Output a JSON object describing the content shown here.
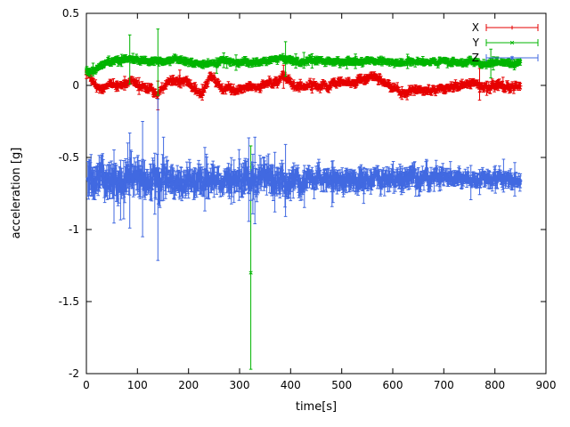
{
  "figure": {
    "background": "#ffffff",
    "border_color": "#000000"
  },
  "chart_data": {
    "type": "scatter",
    "style": "points-with-error-bars",
    "title": "",
    "xlabel": "time[s]",
    "ylabel": "acceleration [g]",
    "xlim": [
      0,
      900
    ],
    "ylim": [
      -2,
      0.5
    ],
    "xticks": [
      0,
      100,
      200,
      300,
      400,
      500,
      600,
      700,
      800,
      900
    ],
    "yticks": [
      0.5,
      0,
      -0.5,
      -1,
      -1.5,
      -2
    ],
    "ytick_labels": [
      "0.5",
      "0",
      "-0.5",
      "-1",
      "-1.5",
      "-2"
    ],
    "grid": false,
    "legend_position": "top-right-inside",
    "series": [
      {
        "name": "X",
        "color": "#e60000",
        "marker": "plus",
        "step": 1,
        "noise_sd": 0.011,
        "err_half_typ": 0.022,
        "err_half_max": 0.09,
        "anchors": [
          [
            0,
            0.08
          ],
          [
            8,
            0.05
          ],
          [
            15,
            0.02
          ],
          [
            22,
            -0.02
          ],
          [
            30,
            -0.03
          ],
          [
            40,
            0.0
          ],
          [
            52,
            0.01
          ],
          [
            62,
            -0.01
          ],
          [
            72,
            0.01
          ],
          [
            82,
            0.03
          ],
          [
            92,
            0.03
          ],
          [
            102,
            0.01
          ],
          [
            112,
            -0.01
          ],
          [
            122,
            -0.01
          ],
          [
            132,
            -0.04
          ],
          [
            140,
            -0.07
          ],
          [
            148,
            -0.02
          ],
          [
            158,
            0.01
          ],
          [
            168,
            0.02
          ],
          [
            178,
            0.03
          ],
          [
            188,
            0.03
          ],
          [
            198,
            0.02
          ],
          [
            208,
            -0.01
          ],
          [
            218,
            -0.04
          ],
          [
            226,
            -0.06
          ],
          [
            234,
            0.01
          ],
          [
            242,
            0.05
          ],
          [
            250,
            0.04
          ],
          [
            258,
            0.01
          ],
          [
            266,
            -0.03
          ],
          [
            274,
            -0.01
          ],
          [
            282,
            -0.02
          ],
          [
            290,
            -0.04
          ],
          [
            298,
            -0.03
          ],
          [
            308,
            -0.01
          ],
          [
            318,
            0.0
          ],
          [
            328,
            -0.01
          ],
          [
            338,
            -0.02
          ],
          [
            348,
            0.01
          ],
          [
            358,
            0.02
          ],
          [
            368,
            0.02
          ],
          [
            378,
            0.04
          ],
          [
            386,
            0.06
          ],
          [
            394,
            0.04
          ],
          [
            404,
            0.01
          ],
          [
            414,
            0.0
          ],
          [
            424,
            -0.01
          ],
          [
            434,
            0.0
          ],
          [
            444,
            0.0
          ],
          [
            454,
            -0.01
          ],
          [
            464,
            0.0
          ],
          [
            474,
            0.0
          ],
          [
            484,
            0.01
          ],
          [
            494,
            0.01
          ],
          [
            504,
            0.02
          ],
          [
            514,
            0.02
          ],
          [
            524,
            0.02
          ],
          [
            534,
            0.03
          ],
          [
            544,
            0.04
          ],
          [
            554,
            0.05
          ],
          [
            562,
            0.06
          ],
          [
            570,
            0.05
          ],
          [
            580,
            0.03
          ],
          [
            590,
            0.01
          ],
          [
            600,
            -0.01
          ],
          [
            610,
            -0.03
          ],
          [
            620,
            -0.05
          ],
          [
            630,
            -0.05
          ],
          [
            640,
            -0.04
          ],
          [
            650,
            -0.04
          ],
          [
            660,
            -0.03
          ],
          [
            670,
            -0.03
          ],
          [
            680,
            -0.03
          ],
          [
            690,
            -0.02
          ],
          [
            700,
            -0.02
          ],
          [
            710,
            -0.01
          ],
          [
            720,
            0.0
          ],
          [
            730,
            0.0
          ],
          [
            740,
            0.01
          ],
          [
            750,
            0.01
          ],
          [
            760,
            0.02
          ],
          [
            768,
            0.01
          ],
          [
            776,
            0.0
          ],
          [
            784,
            0.0
          ],
          [
            792,
            0.0
          ],
          [
            800,
            0.0
          ],
          [
            810,
            -0.01
          ],
          [
            820,
            -0.02
          ],
          [
            830,
            -0.01
          ],
          [
            840,
            -0.01
          ],
          [
            850,
            0.0
          ]
        ],
        "big_errorbars": [
          [
            140,
            0.1
          ],
          [
            386,
            0.08
          ],
          [
            770,
            0.11
          ]
        ]
      },
      {
        "name": "Y",
        "color": "#00b400",
        "marker": "cross",
        "step": 1,
        "noise_sd": 0.008,
        "err_half_typ": 0.02,
        "err_half_max": 0.08,
        "anchors": [
          [
            0,
            0.1
          ],
          [
            10,
            0.1
          ],
          [
            18,
            0.11
          ],
          [
            26,
            0.13
          ],
          [
            36,
            0.15
          ],
          [
            46,
            0.16
          ],
          [
            58,
            0.17
          ],
          [
            70,
            0.18
          ],
          [
            82,
            0.18
          ],
          [
            94,
            0.18
          ],
          [
            106,
            0.17
          ],
          [
            118,
            0.17
          ],
          [
            130,
            0.17
          ],
          [
            142,
            0.16
          ],
          [
            154,
            0.17
          ],
          [
            166,
            0.17
          ],
          [
            178,
            0.18
          ],
          [
            190,
            0.17
          ],
          [
            202,
            0.16
          ],
          [
            214,
            0.15
          ],
          [
            226,
            0.14
          ],
          [
            238,
            0.15
          ],
          [
            250,
            0.16
          ],
          [
            262,
            0.17
          ],
          [
            274,
            0.17
          ],
          [
            286,
            0.16
          ],
          [
            298,
            0.16
          ],
          [
            310,
            0.17
          ],
          [
            322,
            0.16
          ],
          [
            334,
            0.17
          ],
          [
            346,
            0.17
          ],
          [
            358,
            0.17
          ],
          [
            370,
            0.18
          ],
          [
            382,
            0.19
          ],
          [
            394,
            0.18
          ],
          [
            406,
            0.17
          ],
          [
            418,
            0.16
          ],
          [
            430,
            0.16
          ],
          [
            442,
            0.17
          ],
          [
            454,
            0.17
          ],
          [
            466,
            0.17
          ],
          [
            478,
            0.17
          ],
          [
            490,
            0.16
          ],
          [
            502,
            0.16
          ],
          [
            514,
            0.17
          ],
          [
            526,
            0.17
          ],
          [
            538,
            0.16
          ],
          [
            550,
            0.17
          ],
          [
            562,
            0.17
          ],
          [
            574,
            0.17
          ],
          [
            586,
            0.17
          ],
          [
            598,
            0.16
          ],
          [
            610,
            0.16
          ],
          [
            622,
            0.16
          ],
          [
            634,
            0.17
          ],
          [
            646,
            0.16
          ],
          [
            658,
            0.16
          ],
          [
            670,
            0.16
          ],
          [
            682,
            0.17
          ],
          [
            694,
            0.17
          ],
          [
            706,
            0.16
          ],
          [
            718,
            0.16
          ],
          [
            730,
            0.16
          ],
          [
            742,
            0.16
          ],
          [
            754,
            0.17
          ],
          [
            766,
            0.16
          ],
          [
            778,
            0.15
          ],
          [
            790,
            0.15
          ],
          [
            802,
            0.16
          ],
          [
            814,
            0.16
          ],
          [
            826,
            0.15
          ],
          [
            838,
            0.15
          ],
          [
            850,
            0.15
          ]
        ],
        "big_errorbars": [
          [
            85,
            0.17
          ],
          [
            140,
            0.23
          ],
          [
            390,
            0.12
          ],
          [
            792,
            0.1
          ]
        ],
        "outliers": [
          {
            "x": 322,
            "y": -1.3,
            "err_down": 0.67,
            "err_up": 0.88
          }
        ]
      },
      {
        "name": "Z",
        "color": "#4169e1",
        "marker": "star",
        "step": 1,
        "noise_sd": 0.03,
        "err_half_typ": 0.07,
        "err_half_max": 0.2,
        "zones": [
          {
            "x0": 0,
            "x1": 160,
            "noise": 0.04,
            "err": 0.1,
            "err_max": 0.42
          },
          {
            "x0": 160,
            "x1": 300,
            "noise": 0.03,
            "err": 0.08,
            "err_max": 0.22
          },
          {
            "x0": 300,
            "x1": 420,
            "noise": 0.035,
            "err": 0.09,
            "err_max": 0.3
          },
          {
            "x0": 420,
            "x1": 700,
            "noise": 0.025,
            "err": 0.06,
            "err_max": 0.16
          },
          {
            "x0": 700,
            "x1": 860,
            "noise": 0.018,
            "err": 0.045,
            "err_max": 0.12
          }
        ],
        "anchors": [
          [
            3,
            -0.63
          ],
          [
            15,
            -0.65
          ],
          [
            30,
            -0.66
          ],
          [
            50,
            -0.65
          ],
          [
            70,
            -0.66
          ],
          [
            90,
            -0.66
          ],
          [
            110,
            -0.65
          ],
          [
            130,
            -0.66
          ],
          [
            150,
            -0.65
          ],
          [
            170,
            -0.66
          ],
          [
            190,
            -0.65
          ],
          [
            210,
            -0.66
          ],
          [
            230,
            -0.65
          ],
          [
            250,
            -0.66
          ],
          [
            270,
            -0.65
          ],
          [
            290,
            -0.66
          ],
          [
            310,
            -0.65
          ],
          [
            330,
            -0.66
          ],
          [
            350,
            -0.65
          ],
          [
            370,
            -0.66
          ],
          [
            390,
            -0.66
          ],
          [
            410,
            -0.65
          ],
          [
            430,
            -0.66
          ],
          [
            450,
            -0.65
          ],
          [
            470,
            -0.66
          ],
          [
            490,
            -0.65
          ],
          [
            510,
            -0.66
          ],
          [
            530,
            -0.66
          ],
          [
            550,
            -0.65
          ],
          [
            570,
            -0.66
          ],
          [
            590,
            -0.65
          ],
          [
            610,
            -0.66
          ],
          [
            630,
            -0.65
          ],
          [
            650,
            -0.65
          ],
          [
            670,
            -0.65
          ],
          [
            690,
            -0.65
          ],
          [
            710,
            -0.65
          ],
          [
            730,
            -0.64
          ],
          [
            750,
            -0.65
          ],
          [
            770,
            -0.64
          ],
          [
            790,
            -0.65
          ],
          [
            810,
            -0.64
          ],
          [
            830,
            -0.65
          ],
          [
            850,
            -0.65
          ]
        ],
        "big_errorbars": [
          [
            85,
            0.33
          ],
          [
            110,
            0.4
          ],
          [
            140,
            0.56
          ],
          [
            232,
            0.22
          ],
          [
            318,
            0.29
          ],
          [
            330,
            0.3
          ],
          [
            390,
            0.25
          ]
        ]
      }
    ]
  },
  "legend": {
    "entries": [
      {
        "label": "X",
        "color": "#e60000"
      },
      {
        "label": "Y",
        "color": "#00b400"
      },
      {
        "label": "Z",
        "color": "#4169e1"
      }
    ]
  }
}
